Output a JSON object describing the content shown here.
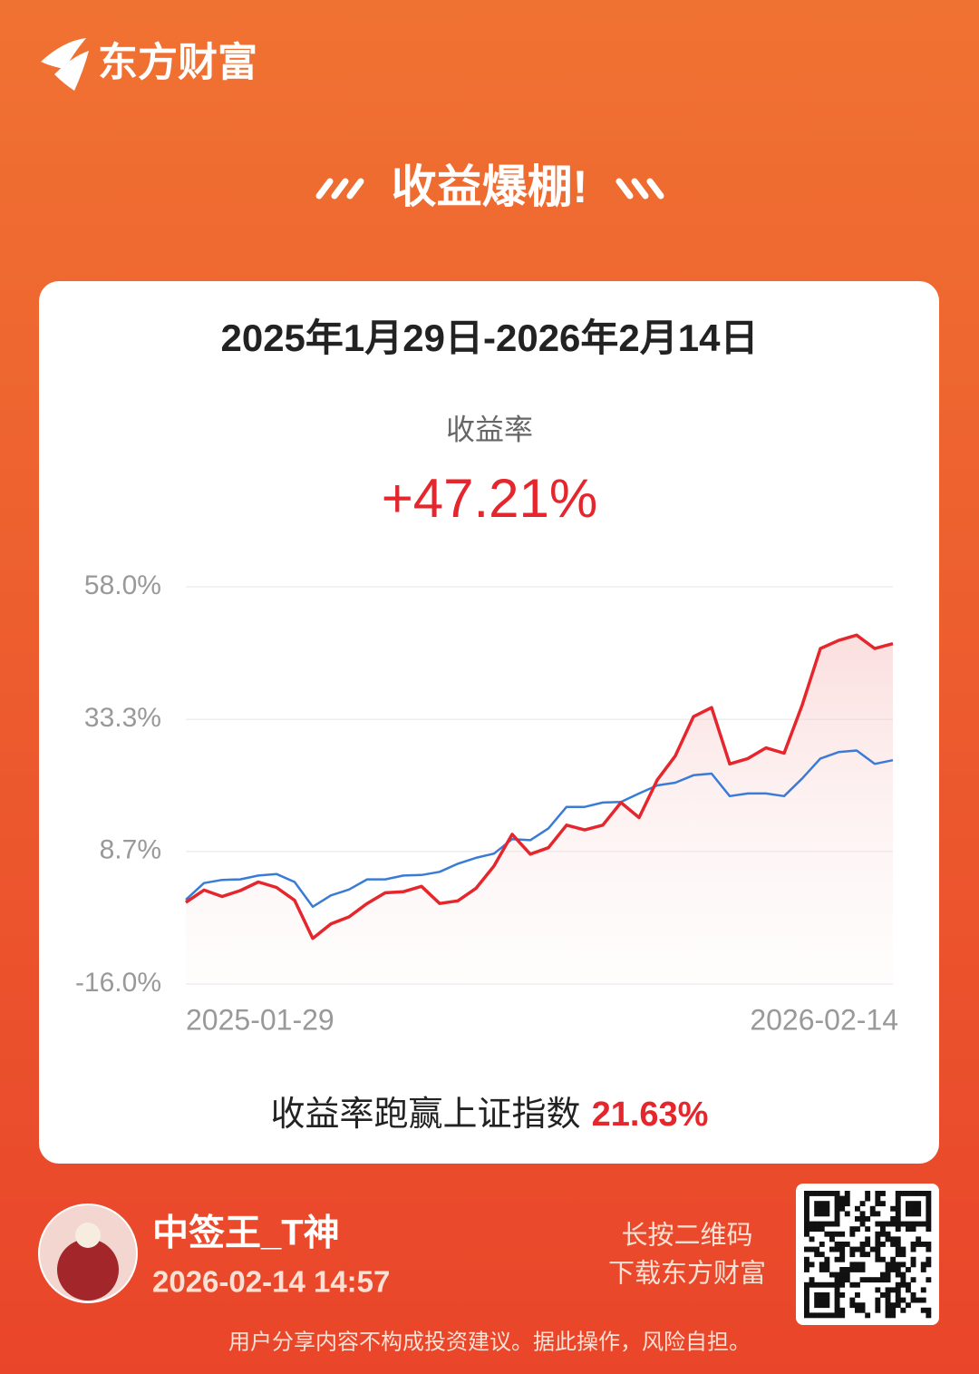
{
  "header": {
    "brand": "东方财富",
    "banner": "收益爆棚!"
  },
  "card": {
    "title": "2025年1月29日-2026年2月14日",
    "metric_label": "收益率",
    "metric_value": "+47.21%",
    "compare_text": "收益率跑赢上证指数",
    "compare_value": "21.63%"
  },
  "chart_data": {
    "type": "line",
    "categories": [
      "2025-01-29",
      null,
      null,
      null,
      null,
      null,
      null,
      null,
      null,
      null,
      null,
      null,
      null,
      null,
      null,
      null,
      null,
      null,
      null,
      null,
      null,
      null,
      null,
      null,
      null,
      null,
      null,
      null,
      null,
      null,
      null,
      null,
      null,
      null,
      null,
      null,
      null,
      null,
      null,
      "2026-02-14"
    ],
    "series": [
      {
        "color": "#e5262c",
        "fill": true,
        "values": [
          -0.8,
          1.5,
          0.3,
          1.4,
          3,
          2,
          -0.4,
          -7.5,
          -4.8,
          -3.5,
          -1,
          1,
          1.2,
          2.2,
          -1,
          -0.5,
          1.8,
          6,
          11.9,
          8.2,
          9.4,
          13.6,
          12.7,
          13.6,
          17.8,
          15,
          22,
          26.5,
          33.8,
          35.5,
          25,
          26,
          28,
          27,
          36,
          46.5,
          48,
          49,
          46.5,
          47.4
        ]
      },
      {
        "color": "#3a7bd5",
        "values": [
          -0.3,
          2.8,
          3.4,
          3.5,
          4.2,
          4.5,
          3,
          -1.6,
          0.5,
          1.6,
          3.5,
          3.5,
          4.2,
          4.3,
          4.9,
          6.4,
          7.5,
          8.3,
          11,
          10.8,
          13,
          17,
          17,
          17.8,
          17.9,
          19.5,
          21,
          21.5,
          22.9,
          23.2,
          19,
          19.5,
          19.5,
          19,
          22.3,
          26,
          27.2,
          27.5,
          25,
          25.7
        ]
      }
    ],
    "ylim": [
      -16,
      58
    ],
    "yticks": [
      {
        "value": 58.0,
        "label": "58.0%"
      },
      {
        "value": 33.3,
        "label": "33.3%"
      },
      {
        "value": 8.7,
        "label": "8.7%"
      },
      {
        "value": -16.0,
        "label": "-16.0%"
      }
    ],
    "grid": true
  },
  "user": {
    "name": "中签王_T神",
    "time": "2026-02-14 14:57"
  },
  "qr": {
    "line1": "长按二维码",
    "line2": "下载东方财富"
  },
  "disclaimer": "用户分享内容不构成投资建议。据此操作，风险自担。"
}
